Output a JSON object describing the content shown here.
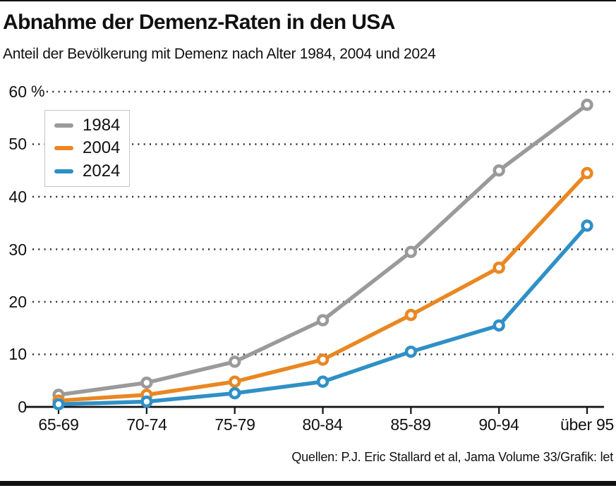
{
  "header": {
    "title": "Abnahme der Demenz-Raten in den USA",
    "subtitle": "Anteil der Bevölkerung mit Demenz nach Alter 1984, 2004 und 2024"
  },
  "source": "Quellen: P.J. Eric Stallard et al, Jama Volume 33/Grafik: let",
  "chart_data": {
    "type": "line",
    "title": "Abnahme der Demenz-Raten in den USA",
    "subtitle": "Anteil der Bevölkerung mit Demenz nach Alter 1984, 2004 und 2024",
    "categories": [
      "65-69",
      "70-74",
      "75-79",
      "80-84",
      "85-89",
      "90-94",
      "über 95"
    ],
    "series": [
      {
        "name": "1984",
        "color": "#9a9a9a",
        "values": [
          2.3,
          4.6,
          8.6,
          16.5,
          29.5,
          45,
          57.5
        ]
      },
      {
        "name": "2004",
        "color": "#e98722",
        "values": [
          1.2,
          2.3,
          4.8,
          9,
          17.5,
          26.5,
          44.5
        ]
      },
      {
        "name": "2024",
        "color": "#2f90c6",
        "values": [
          0.5,
          1,
          2.6,
          4.8,
          10.5,
          15.5,
          34.5
        ]
      }
    ],
    "ylim": [
      0,
      60
    ],
    "yticks": [
      0,
      10,
      20,
      30,
      40,
      50,
      60
    ],
    "unit": "%",
    "grid": "dotted horizontal",
    "legend_position": "top-left",
    "axis_color": "#111111",
    "grid_color": "#2e2e2e"
  }
}
